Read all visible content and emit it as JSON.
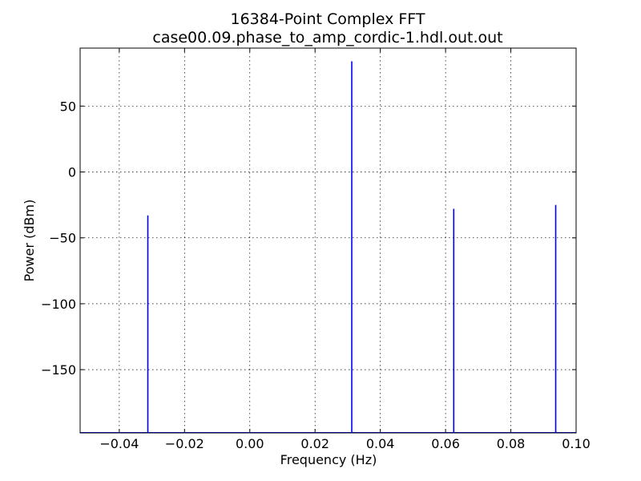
{
  "chart_data": {
    "type": "line",
    "title": "16384-Point Complex FFT",
    "subtitle": "case00.09.phase_to_amp_cordic-1.hdl.out.out",
    "xlabel": "Frequency (Hz)",
    "ylabel": "Power (dBm)",
    "xlim": [
      -0.052,
      0.1
    ],
    "ylim": [
      -198,
      94
    ],
    "xticks": [
      -0.04,
      -0.02,
      0.0,
      0.02,
      0.04,
      0.06,
      0.08,
      0.1
    ],
    "xtick_labels": [
      "−0.04",
      "−0.02",
      "0.00",
      "0.02",
      "0.04",
      "0.06",
      "0.08",
      "0.10"
    ],
    "yticks": [
      50,
      0,
      -50,
      -100,
      -150
    ],
    "ytick_labels": [
      "50",
      "0",
      "−50",
      "−100",
      "−150"
    ],
    "grid": true,
    "series_color": "#0000ff",
    "peaks": [
      {
        "x": -0.03125,
        "y": -33
      },
      {
        "x": 0.03125,
        "y": 84
      },
      {
        "x": 0.0625,
        "y": -28
      },
      {
        "x": 0.09375,
        "y": -25
      }
    ]
  }
}
